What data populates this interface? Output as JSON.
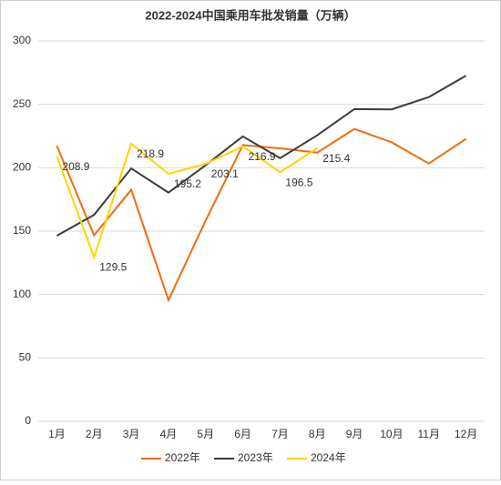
{
  "chart_data": {
    "type": "line",
    "title": "2022-2024中国乘用车批发销量（万辆）",
    "categories": [
      "1月",
      "2月",
      "3月",
      "4月",
      "5月",
      "6月",
      "7月",
      "8月",
      "9月",
      "10月",
      "11月",
      "12月"
    ],
    "series": [
      {
        "name": "2022年",
        "color": "#f26b0f",
        "values": [
          217.3,
          146.7,
          182.6,
          95.6,
          158.3,
          217.9,
          215.3,
          211.9,
          230.6,
          220.1,
          203.3,
          222.8
        ]
      },
      {
        "name": "2023年",
        "color": "#3b3b3b",
        "values": [
          146.4,
          162.8,
          199.5,
          180.4,
          202.0,
          224.7,
          207.5,
          225.6,
          246.3,
          246.0,
          255.7,
          272.6
        ]
      },
      {
        "name": "2024年",
        "color": "#ffd400",
        "values": [
          208.9,
          129.5,
          218.9,
          195.2,
          203.1,
          216.9,
          196.5,
          215.4,
          null,
          null,
          null,
          null
        ],
        "show_labels": true
      }
    ],
    "ylim": [
      0,
      300
    ],
    "yticks": [
      0,
      50,
      100,
      150,
      200,
      250,
      300
    ],
    "grid": true,
    "legend": "bottom"
  }
}
